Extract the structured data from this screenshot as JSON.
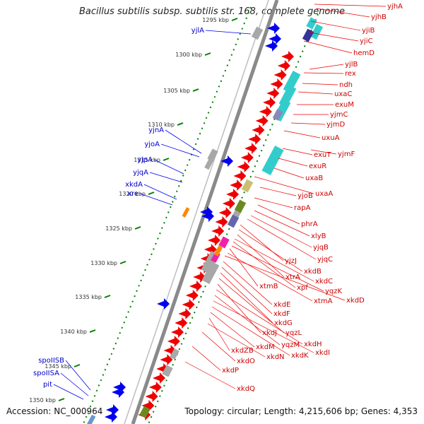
{
  "title": "Bacillus subtilis subsp. subtilis str. 168, complete genome",
  "accession_text": "Accession: NC_000964",
  "topology_text": "Topology: circular; Length: 4,215,606 bp; Genes: 4,353",
  "colors": {
    "backbone": "#888888",
    "ticks": "#008000",
    "forward_gene": "#0000ff",
    "reverse_gene": "#ff0000",
    "label_forward": "#0000cc",
    "label_reverse": "#cc0000"
  },
  "ticks": [
    "1295 kbp",
    "1300 kbp",
    "1305 kbp",
    "1310 kbp",
    "1315 kbp",
    "1320 kbp",
    "1325 kbp",
    "1330 kbp",
    "1335 kbp",
    "1340 kbp",
    "1345 kbp",
    "1350 kbp"
  ],
  "forward_genes": [
    "yjlA",
    "yjnA",
    "yjoA",
    "yjpA",
    "yjqA",
    "xkdA",
    "xre",
    "spoIISB",
    "spoIISA",
    "pit"
  ],
  "reverse_genes": [
    "yjhA",
    "yjhB",
    "yjiB",
    "yjiC",
    "hemD",
    "yjlB",
    "rex",
    "ndh",
    "uxaC",
    "exuM",
    "yjmC",
    "yjmD",
    "uxuA",
    "yjmF",
    "exuT",
    "exuR",
    "uxaB",
    "uxaA",
    "yjoB",
    "rapA",
    "phrA",
    "xlyB",
    "yjqB",
    "yjqC",
    "yjzJ",
    "xkdB",
    "xtrA",
    "xkdC",
    "xpf",
    "yqzK",
    "xtmB",
    "xtmA",
    "xkdD",
    "xkdE",
    "xkdF",
    "xkdG",
    "yqzL",
    "xkdJ",
    "xkdH",
    "yqzM",
    "xkdI",
    "xkdK",
    "xkdM",
    "xkdZB",
    "xkdN",
    "xkdO",
    "xkdP",
    "xkdQ"
  ]
}
